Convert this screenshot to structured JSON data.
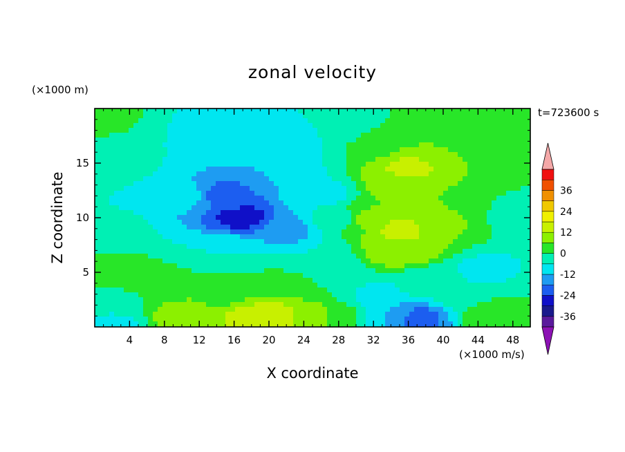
{
  "chart_data": {
    "type": "heatmap",
    "title": "zonal velocity",
    "xlabel": "X coordinate",
    "ylabel": "Z coordinate",
    "x_unit": "(×1000 m/s)",
    "y_unit": "(×1000 m)",
    "time_label": "t=723600 s",
    "xlim": [
      0,
      50
    ],
    "ylim": [
      0,
      20
    ],
    "x_ticks": [
      4,
      8,
      12,
      16,
      20,
      24,
      28,
      32,
      36,
      40,
      44,
      48
    ],
    "y_ticks": [
      5,
      10,
      15
    ],
    "colorbar": {
      "ticks": [
        36,
        24,
        12,
        0,
        -12,
        -24,
        -36
      ],
      "levels": [
        -42,
        -36,
        -30,
        -24,
        -18,
        -12,
        -6,
        0,
        6,
        12,
        18,
        24,
        30,
        36,
        42
      ],
      "colors": [
        "#5a1a9c",
        "#1a1a8c",
        "#1010c8",
        "#1c5ef0",
        "#1e9cf2",
        "#00e6f0",
        "#00f0b4",
        "#28e628",
        "#8cf000",
        "#c8f000",
        "#f0f000",
        "#f0c800",
        "#f09000",
        "#f05000",
        "#f01010"
      ],
      "under_color": "#8c12b4",
      "over_color": "#f4a8a8"
    },
    "field_anchors": [
      {
        "x": 2,
        "z": 19,
        "value": 1
      },
      {
        "x": 2,
        "z": 15,
        "value": -3
      },
      {
        "x": 2,
        "z": 9,
        "value": -5
      },
      {
        "x": 2,
        "z": 5,
        "value": 3
      },
      {
        "x": 2,
        "z": 2,
        "value": -2
      },
      {
        "x": 2,
        "z": 0.5,
        "value": -8
      },
      {
        "x": 8,
        "z": 17,
        "value": -6
      },
      {
        "x": 10,
        "z": 12,
        "value": -10
      },
      {
        "x": 8,
        "z": 4,
        "value": 1
      },
      {
        "x": 10,
        "z": 1,
        "value": 10
      },
      {
        "x": 15,
        "z": 18,
        "value": -12
      },
      {
        "x": 15,
        "z": 12,
        "value": -20
      },
      {
        "x": 17,
        "z": 10,
        "value": -26
      },
      {
        "x": 15,
        "z": 7,
        "value": -6
      },
      {
        "x": 15,
        "z": 3,
        "value": 4
      },
      {
        "x": 18,
        "z": 1,
        "value": 14
      },
      {
        "x": 21,
        "z": 1,
        "value": 14
      },
      {
        "x": 21,
        "z": 14,
        "value": -12
      },
      {
        "x": 22,
        "z": 9,
        "value": -14
      },
      {
        "x": 23,
        "z": 17,
        "value": -8
      },
      {
        "x": 22,
        "z": 4,
        "value": 1
      },
      {
        "x": 26,
        "z": 12,
        "value": -8
      },
      {
        "x": 26,
        "z": 6,
        "value": -6
      },
      {
        "x": 25,
        "z": 1,
        "value": 10
      },
      {
        "x": 29,
        "z": 18,
        "value": -4
      },
      {
        "x": 28,
        "z": 10,
        "value": -3
      },
      {
        "x": 28,
        "z": 4,
        "value": 0
      },
      {
        "x": 28,
        "z": 1,
        "value": 2
      },
      {
        "x": 32,
        "z": 17,
        "value": 3
      },
      {
        "x": 31,
        "z": 10,
        "value": 7
      },
      {
        "x": 32,
        "z": 3,
        "value": -8
      },
      {
        "x": 34,
        "z": 1,
        "value": -12
      },
      {
        "x": 35,
        "z": 13,
        "value": 10
      },
      {
        "x": 36,
        "z": 14.5,
        "value": 13
      },
      {
        "x": 35,
        "z": 9,
        "value": 13
      },
      {
        "x": 35,
        "z": 7,
        "value": 12
      },
      {
        "x": 37,
        "z": 0.8,
        "value": -20
      },
      {
        "x": 38,
        "z": 4,
        "value": -4
      },
      {
        "x": 40,
        "z": 17,
        "value": 6
      },
      {
        "x": 40,
        "z": 10,
        "value": 8
      },
      {
        "x": 42,
        "z": 3,
        "value": -3
      },
      {
        "x": 44,
        "z": 19,
        "value": 2
      },
      {
        "x": 44,
        "z": 11,
        "value": 0
      },
      {
        "x": 45,
        "z": 5,
        "value": -8
      },
      {
        "x": 46,
        "z": 1,
        "value": 6
      },
      {
        "x": 48,
        "z": 17,
        "value": 1
      },
      {
        "x": 49,
        "z": 10,
        "value": -3
      },
      {
        "x": 49,
        "z": 3,
        "value": 0
      }
    ]
  }
}
